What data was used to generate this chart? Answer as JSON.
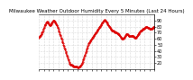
{
  "title": "Milwaukee Weather Outdoor Humidity Every 5 Minutes (Last 24 Hours)",
  "title_fontsize": 4.0,
  "line_color": "#DD0000",
  "line_style": "--",
  "line_width": 0.6,
  "marker": ".",
  "marker_size": 1.0,
  "background_color": "#FFFFFF",
  "grid_color": "#BBBBBB",
  "tick_fontsize": 3.5,
  "ylim": [
    10,
    100
  ],
  "yticks": [
    20,
    30,
    40,
    50,
    60,
    70,
    80,
    90
  ],
  "humidity_values": [
    62,
    63,
    64,
    65,
    66,
    67,
    68,
    70,
    71,
    72,
    74,
    76,
    78,
    80,
    82,
    83,
    84,
    85,
    86,
    87,
    88,
    88,
    87,
    86,
    85,
    84,
    83,
    82,
    82,
    83,
    84,
    85,
    86,
    87,
    88,
    89,
    90,
    90,
    89,
    88,
    87,
    86,
    85,
    84,
    83,
    82,
    80,
    78,
    76,
    74,
    72,
    70,
    68,
    66,
    64,
    62,
    60,
    58,
    56,
    54,
    52,
    50,
    48,
    46,
    44,
    42,
    40,
    38,
    36,
    34,
    32,
    30,
    28,
    26,
    24,
    22,
    20,
    19,
    18,
    18,
    18,
    17,
    17,
    16,
    16,
    16,
    15,
    15,
    15,
    15,
    15,
    14,
    14,
    14,
    14,
    14,
    13,
    13,
    13,
    13,
    14,
    14,
    15,
    15,
    16,
    17,
    18,
    19,
    20,
    22,
    24,
    26,
    28,
    30,
    32,
    34,
    36,
    38,
    40,
    42,
    44,
    46,
    48,
    50,
    52,
    53,
    54,
    55,
    56,
    57,
    58,
    59,
    60,
    61,
    62,
    63,
    64,
    65,
    66,
    67,
    68,
    69,
    70,
    71,
    72,
    73,
    74,
    75,
    76,
    77,
    78,
    79,
    80,
    81,
    82,
    83,
    84,
    85,
    86,
    87,
    88,
    89,
    90,
    90,
    91,
    91,
    90,
    89,
    88,
    87,
    86,
    85,
    84,
    83,
    82,
    81,
    80,
    79,
    78,
    77,
    76,
    75,
    74,
    73,
    73,
    73,
    73,
    72,
    72,
    72,
    71,
    71,
    70,
    70,
    70,
    69,
    69,
    69,
    68,
    68,
    67,
    66,
    65,
    64,
    63,
    62,
    61,
    60,
    60,
    60,
    60,
    60,
    61,
    62,
    63,
    64,
    65,
    66,
    67,
    68,
    68,
    68,
    67,
    66,
    65,
    64,
    64,
    64,
    64,
    64,
    65,
    65,
    65,
    65,
    65,
    64,
    64,
    63,
    63,
    62,
    62,
    62,
    62,
    62,
    63,
    64,
    65,
    66,
    67,
    68,
    69,
    70,
    71,
    72,
    73,
    73,
    74,
    74,
    75,
    75,
    76,
    76,
    77,
    77,
    78,
    78,
    79,
    79,
    79,
    79,
    79,
    79,
    78,
    78,
    78,
    78,
    77,
    77,
    77,
    77,
    77,
    77,
    77,
    77,
    78,
    78,
    79,
    79,
    79,
    79
  ],
  "num_xticks": 25
}
